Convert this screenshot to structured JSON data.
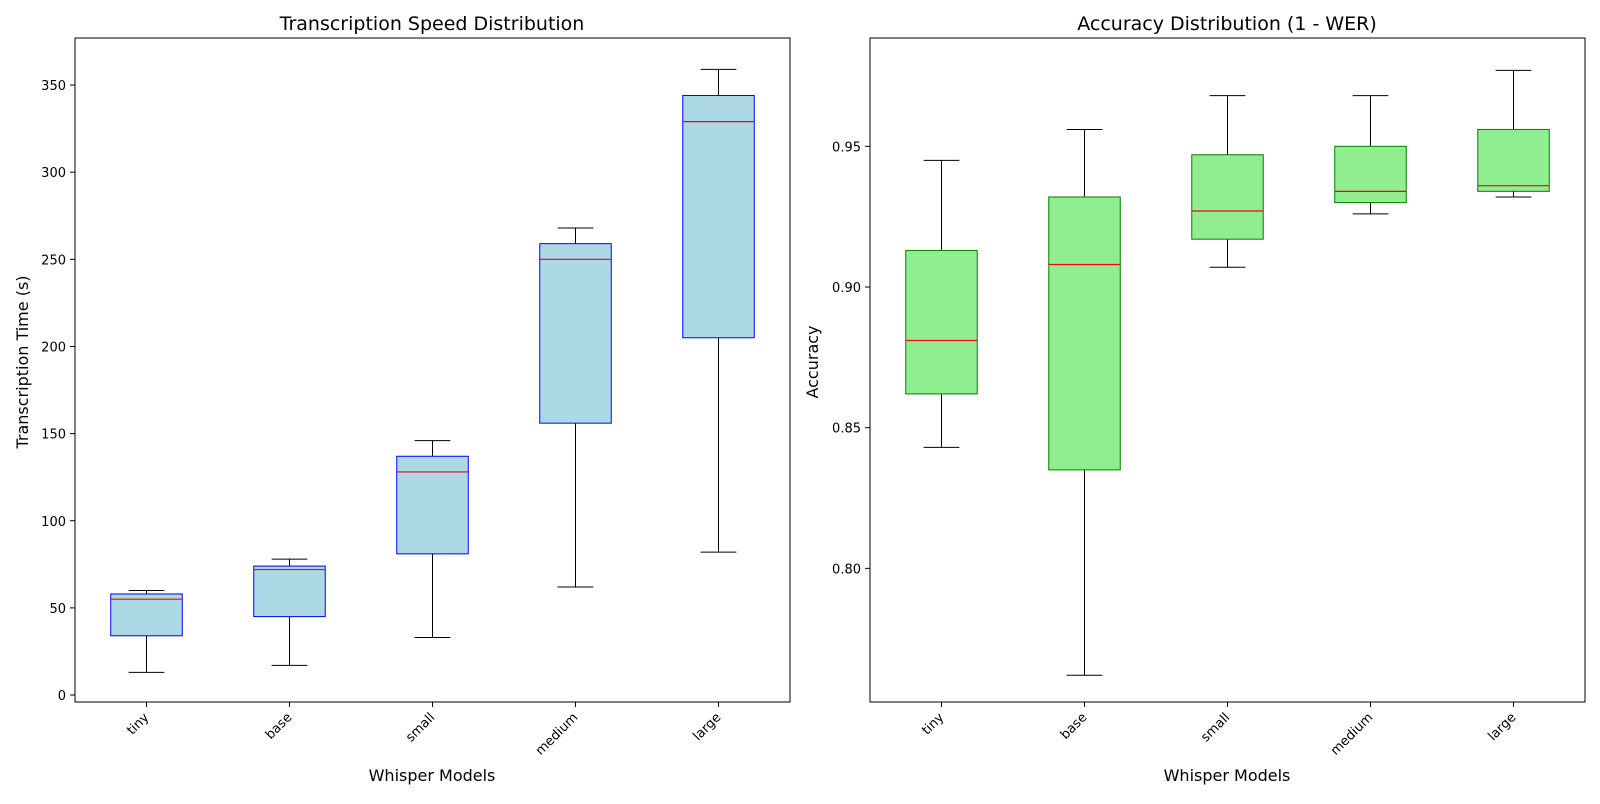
{
  "chart_data": [
    {
      "type": "boxplot",
      "title": "Transcription Speed Distribution",
      "xlabel": "Whisper Models",
      "ylabel": "Transcription Time (s)",
      "ylim": [
        -4,
        377
      ],
      "yticks": [
        0,
        50,
        100,
        150,
        200,
        250,
        300,
        350
      ],
      "ytick_labels": [
        "0",
        "50",
        "100",
        "150",
        "200",
        "250",
        "300",
        "350"
      ],
      "categories": [
        "tiny",
        "base",
        "small",
        "medium",
        "large"
      ],
      "boxes": [
        {
          "whislo": 13,
          "q1": 34,
          "med": 55,
          "q3": 58,
          "whishi": 60
        },
        {
          "whislo": 17,
          "q1": 45,
          "med": 72,
          "q3": 74,
          "whishi": 78
        },
        {
          "whislo": 33,
          "q1": 81,
          "med": 128,
          "q3": 137,
          "whishi": 146
        },
        {
          "whislo": 62,
          "q1": 156,
          "med": 250,
          "q3": 259,
          "whishi": 268
        },
        {
          "whislo": 82,
          "q1": 205,
          "med": 329,
          "q3": 344,
          "whishi": 359
        }
      ],
      "colors": {
        "box_fill": "#add8e6",
        "box_edge": "#0000ff",
        "median": "#ff0000",
        "whisker": "#000000"
      },
      "grid": false
    },
    {
      "type": "boxplot",
      "title": "Accuracy Distribution (1 - WER)",
      "xlabel": "Whisper Models",
      "ylabel": "Accuracy",
      "ylim": [
        0.7525,
        0.9885
      ],
      "yticks": [
        0.8,
        0.85,
        0.9,
        0.95
      ],
      "ytick_labels": [
        "0.80",
        "0.85",
        "0.90",
        "0.95"
      ],
      "categories": [
        "tiny",
        "base",
        "small",
        "medium",
        "large"
      ],
      "boxes": [
        {
          "whislo": 0.843,
          "q1": 0.862,
          "med": 0.881,
          "q3": 0.913,
          "whishi": 0.945
        },
        {
          "whislo": 0.762,
          "q1": 0.835,
          "med": 0.908,
          "q3": 0.932,
          "whishi": 0.956
        },
        {
          "whislo": 0.907,
          "q1": 0.917,
          "med": 0.927,
          "q3": 0.947,
          "whishi": 0.968
        },
        {
          "whislo": 0.926,
          "q1": 0.93,
          "med": 0.934,
          "q3": 0.95,
          "whishi": 0.968
        },
        {
          "whislo": 0.932,
          "q1": 0.934,
          "med": 0.936,
          "q3": 0.956,
          "whishi": 0.977
        }
      ],
      "colors": {
        "box_fill": "#90ee90",
        "box_edge": "#008000",
        "median": "#ff0000",
        "whisker": "#000000"
      },
      "grid": false
    }
  ]
}
